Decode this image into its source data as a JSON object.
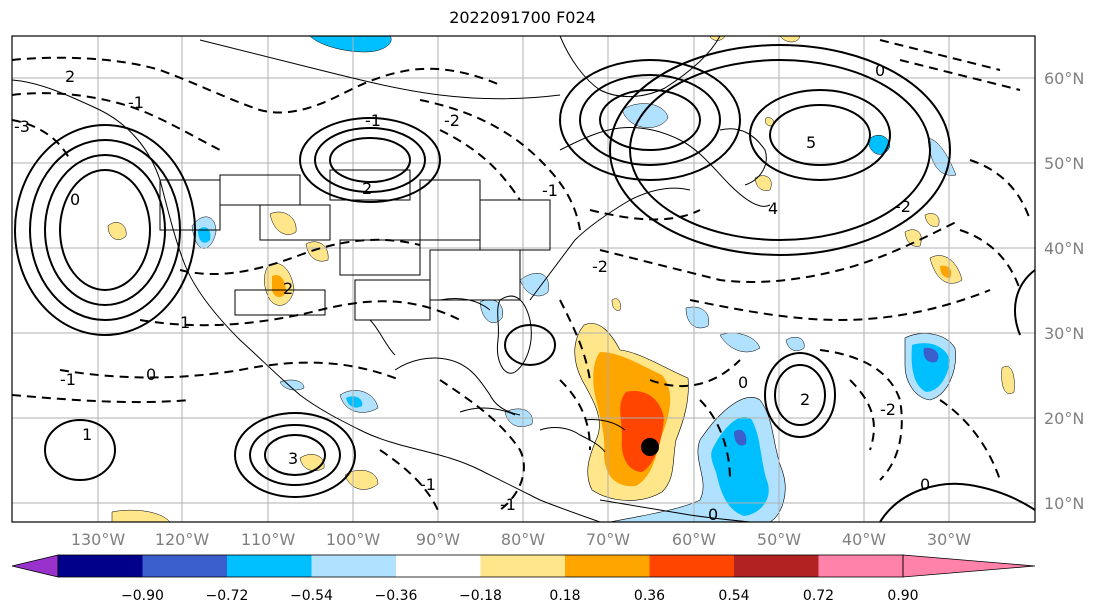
{
  "title": "2022091700 F024",
  "lat_labels": [
    "60°N",
    "50°N",
    "40°N",
    "30°N",
    "20°N",
    "10°N"
  ],
  "lon_labels": [
    "130°W",
    "120°W",
    "110°W",
    "100°W",
    "90°W",
    "80°W",
    "70°W",
    "60°W",
    "50°W",
    "40°W",
    "30°W"
  ],
  "colorbar": {
    "colors": [
      "#9932cc",
      "#00008b",
      "#3a5fcd",
      "#00bfff",
      "#b0e2ff",
      "#ffffff",
      "#ffe68a",
      "#ffa500",
      "#ff4500",
      "#b22222",
      "#ff82ab"
    ],
    "ticks": [
      "−0.90",
      "−0.72",
      "−0.54",
      "−0.36",
      "−0.18",
      "0.18",
      "0.36",
      "0.54",
      "0.72",
      "0.90"
    ]
  },
  "contour_labels": [
    "2",
    "-1",
    "-3",
    "0",
    "2",
    "-1",
    "-2",
    "5",
    "4",
    "-2",
    "0",
    "-1",
    "1",
    "0",
    "2",
    "-2",
    "-1",
    "0",
    "0",
    "3",
    "2",
    "1",
    "-1",
    "-2",
    "-1",
    "0"
  ],
  "storm_marker": "black-dot"
}
